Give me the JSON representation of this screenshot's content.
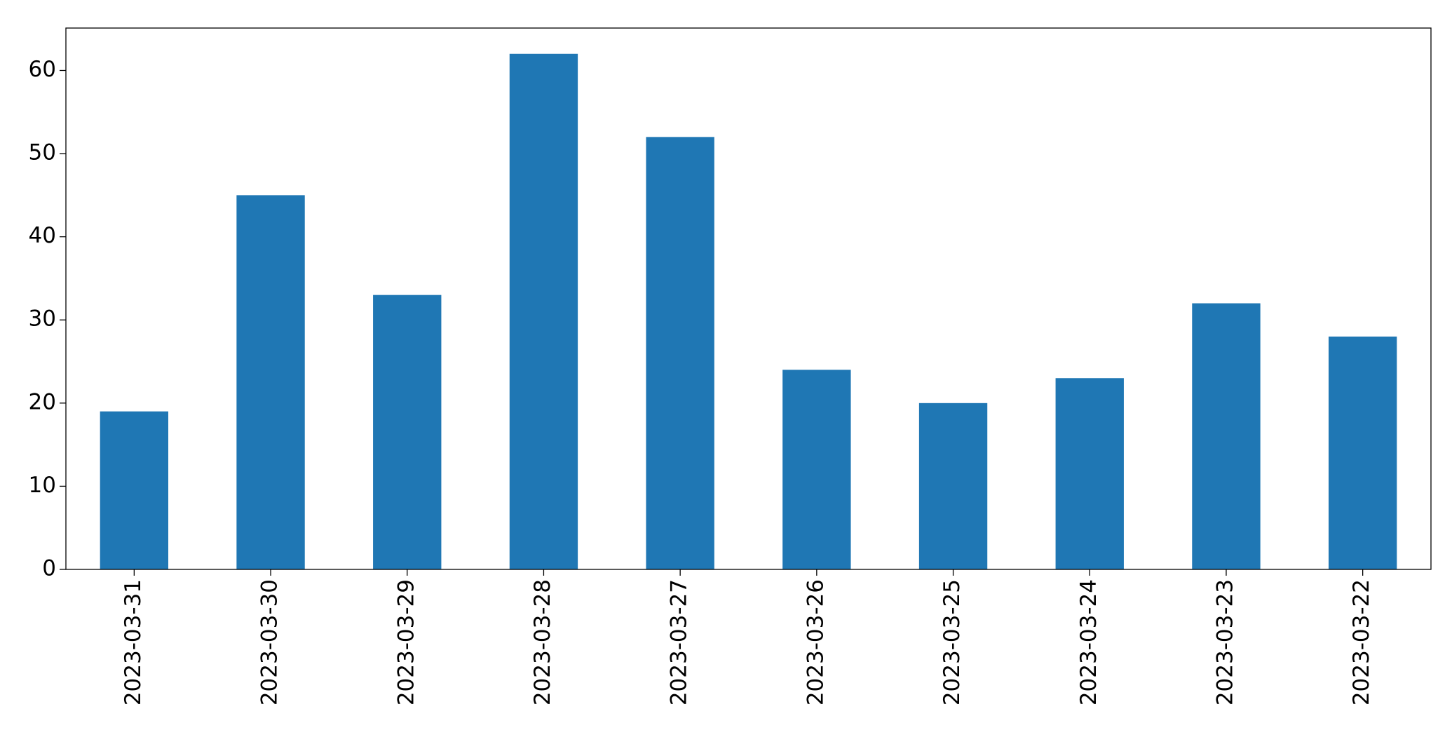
{
  "chart_data": {
    "type": "bar",
    "categories": [
      "2023-03-31",
      "2023-03-30",
      "2023-03-29",
      "2023-03-28",
      "2023-03-27",
      "2023-03-26",
      "2023-03-25",
      "2023-03-24",
      "2023-03-23",
      "2023-03-22"
    ],
    "values": [
      19,
      45,
      33,
      62,
      52,
      24,
      20,
      23,
      32,
      28
    ],
    "color": "#1f77b4",
    "ylim": [
      0,
      65.1
    ],
    "yticks": [
      0,
      10,
      20,
      30,
      40,
      50,
      60
    ],
    "grid": false
  }
}
